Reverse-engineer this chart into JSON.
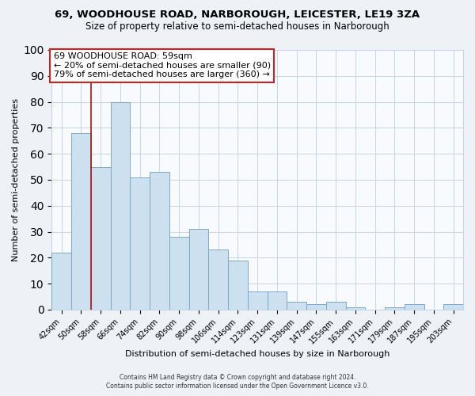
{
  "title": "69, WOODHOUSE ROAD, NARBOROUGH, LEICESTER, LE19 3ZA",
  "subtitle": "Size of property relative to semi-detached houses in Narborough",
  "xlabel": "Distribution of semi-detached houses by size in Narborough",
  "ylabel": "Number of semi-detached properties",
  "bar_labels": [
    "42sqm",
    "50sqm",
    "58sqm",
    "66sqm",
    "74sqm",
    "82sqm",
    "90sqm",
    "98sqm",
    "106sqm",
    "114sqm",
    "123sqm",
    "131sqm",
    "139sqm",
    "147sqm",
    "155sqm",
    "163sqm",
    "171sqm",
    "179sqm",
    "187sqm",
    "195sqm",
    "203sqm"
  ],
  "bar_values": [
    22,
    68,
    55,
    80,
    51,
    53,
    28,
    31,
    23,
    19,
    7,
    7,
    3,
    2,
    3,
    1,
    0,
    1,
    2,
    0,
    2
  ],
  "bar_color": "#cce0f0",
  "bar_edge_color": "#7aaac8",
  "red_line_x": 1.5,
  "ylim": [
    0,
    100
  ],
  "annotation_title": "69 WOODHOUSE ROAD: 59sqm",
  "annotation_line1": "← 20% of semi-detached houses are smaller (90)",
  "annotation_line2": "79% of semi-detached houses are larger (360) →",
  "annotation_box_facecolor": "#ffffff",
  "annotation_box_edgecolor": "#cc2222",
  "footer_line1": "Contains HM Land Registry data © Crown copyright and database right 2024.",
  "footer_line2": "Contains public sector information licensed under the Open Government Licence v3.0.",
  "bg_color": "#eef2f7",
  "plot_bg_color": "#f8fafd",
  "grid_color": "#c5d5e5",
  "title_fontsize": 9.5,
  "subtitle_fontsize": 8.5,
  "ylabel_fontsize": 8,
  "xlabel_fontsize": 8,
  "tick_fontsize": 7,
  "annotation_fontsize": 8,
  "footer_fontsize": 5.5
}
